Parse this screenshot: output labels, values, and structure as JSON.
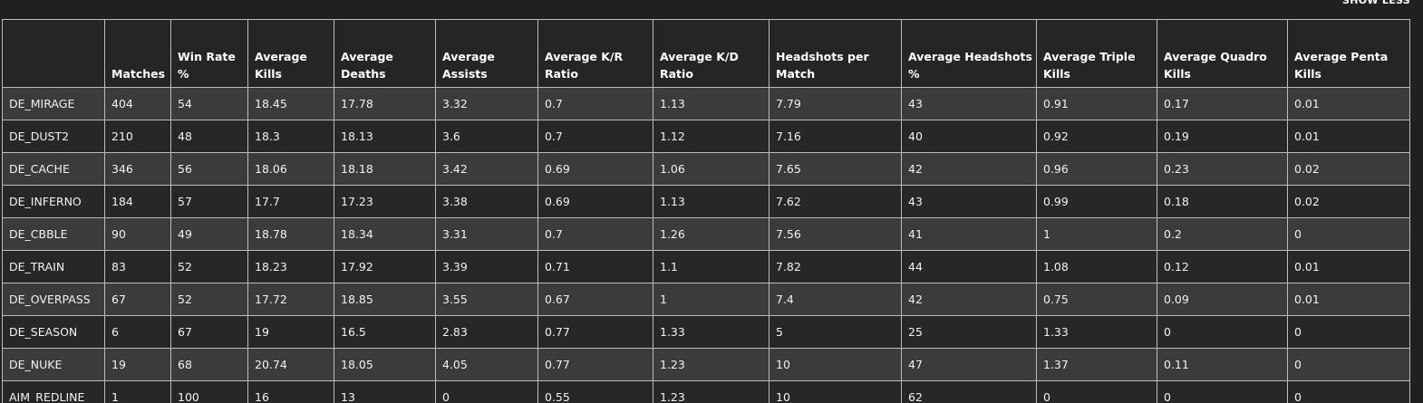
{
  "toggle": {
    "label": "SHOW LESS"
  },
  "table": {
    "headers": [
      "",
      "Matches",
      "Win Rate %",
      "Average Kills",
      "Average Deaths",
      "Average Assists",
      "Average K/R Ratio",
      "Average K/D Ratio",
      "Headshots per Match",
      "Average Headshots %",
      "Average Triple Kills",
      "Average Quadro Kills",
      "Average Penta Kills"
    ],
    "rows": [
      [
        "DE_MIRAGE",
        "404",
        "54",
        "18.45",
        "17.78",
        "3.32",
        "0.7",
        "1.13",
        "7.79",
        "43",
        "0.91",
        "0.17",
        "0.01"
      ],
      [
        "DE_DUST2",
        "210",
        "48",
        "18.3",
        "18.13",
        "3.6",
        "0.7",
        "1.12",
        "7.16",
        "40",
        "0.92",
        "0.19",
        "0.01"
      ],
      [
        "DE_CACHE",
        "346",
        "56",
        "18.06",
        "18.18",
        "3.42",
        "0.69",
        "1.06",
        "7.65",
        "42",
        "0.96",
        "0.23",
        "0.02"
      ],
      [
        "DE_INFERNO",
        "184",
        "57",
        "17.7",
        "17.23",
        "3.38",
        "0.69",
        "1.13",
        "7.62",
        "43",
        "0.99",
        "0.18",
        "0.02"
      ],
      [
        "DE_CBBLE",
        "90",
        "49",
        "18.78",
        "18.34",
        "3.31",
        "0.7",
        "1.26",
        "7.56",
        "41",
        "1",
        "0.2",
        "0"
      ],
      [
        "DE_TRAIN",
        "83",
        "52",
        "18.23",
        "17.92",
        "3.39",
        "0.71",
        "1.1",
        "7.82",
        "44",
        "1.08",
        "0.12",
        "0.01"
      ],
      [
        "DE_OVERPASS",
        "67",
        "52",
        "17.72",
        "18.85",
        "3.55",
        "0.67",
        "1",
        "7.4",
        "42",
        "0.75",
        "0.09",
        "0.01"
      ],
      [
        "DE_SEASON",
        "6",
        "67",
        "19",
        "16.5",
        "2.83",
        "0.77",
        "1.33",
        "5",
        "25",
        "1.33",
        "0",
        "0"
      ],
      [
        "DE_NUKE",
        "19",
        "68",
        "20.74",
        "18.05",
        "4.05",
        "0.77",
        "1.23",
        "10",
        "47",
        "1.37",
        "0.11",
        "0"
      ],
      [
        "AIM_REDLINE",
        "1",
        "100",
        "16",
        "13",
        "0",
        "0.55",
        "1.23",
        "10",
        "62",
        "0",
        "0",
        "0"
      ]
    ]
  }
}
